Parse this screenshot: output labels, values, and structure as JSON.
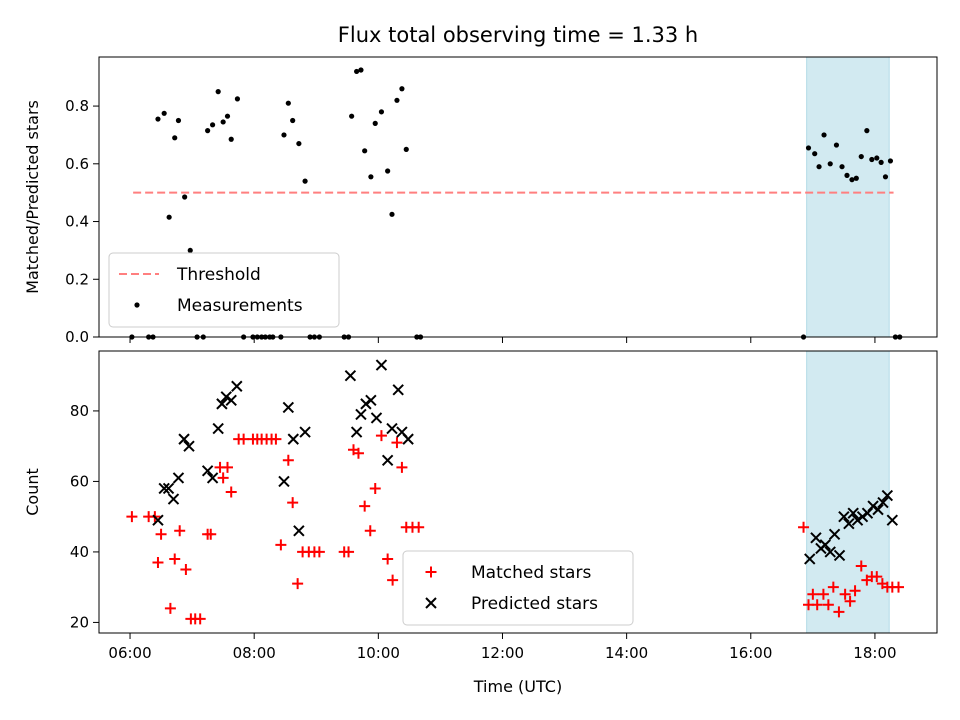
{
  "chart_data": {
    "title": "Flux total observing time = 1.33 h",
    "xlabel": "Time (UTC)",
    "x_unit": "hours UTC",
    "xlim": [
      5.5,
      19.0
    ],
    "x_ticks": [
      6,
      8,
      10,
      12,
      14,
      16,
      18
    ],
    "x_tick_labels": [
      "06:00",
      "08:00",
      "10:00",
      "12:00",
      "14:00",
      "16:00",
      "18:00"
    ],
    "highlight_span": {
      "from": 16.9,
      "to": 18.23,
      "color": "#add8e6"
    },
    "panels": [
      {
        "type": "scatter",
        "ylabel": "Matched/Predicted stars",
        "ylim": [
          0,
          0.97
        ],
        "y_ticks": [
          0.0,
          0.2,
          0.4,
          0.6,
          0.8
        ],
        "y_tick_labels": [
          "0.0",
          "0.2",
          "0.4",
          "0.6",
          "0.8"
        ],
        "legend_position": "lower-left",
        "threshold": {
          "name": "Threshold",
          "value": 0.5,
          "x_range": [
            6.05,
            18.3
          ],
          "color": "#ff7f7f"
        },
        "series": [
          {
            "name": "Measurements",
            "color": "#000000",
            "marker": "dot",
            "points": [
              [
                6.03,
                0
              ],
              [
                6.3,
                0
              ],
              [
                6.37,
                0
              ],
              [
                6.45,
                0.755
              ],
              [
                6.55,
                0.775
              ],
              [
                6.63,
                0.415
              ],
              [
                6.72,
                0.69
              ],
              [
                6.78,
                0.75
              ],
              [
                6.88,
                0.485
              ],
              [
                6.97,
                0.3
              ],
              [
                7.08,
                0
              ],
              [
                7.18,
                0
              ],
              [
                7.25,
                0.715
              ],
              [
                7.33,
                0.735
              ],
              [
                7.42,
                0.85
              ],
              [
                7.5,
                0.745
              ],
              [
                7.57,
                0.765
              ],
              [
                7.63,
                0.685
              ],
              [
                7.73,
                0.825
              ],
              [
                7.83,
                0
              ],
              [
                7.98,
                0
              ],
              [
                8.05,
                0
              ],
              [
                8.12,
                0
              ],
              [
                8.18,
                0
              ],
              [
                8.25,
                0
              ],
              [
                8.3,
                0
              ],
              [
                8.43,
                0
              ],
              [
                8.48,
                0.7
              ],
              [
                8.55,
                0.81
              ],
              [
                8.62,
                0.75
              ],
              [
                8.72,
                0.67
              ],
              [
                8.82,
                0.54
              ],
              [
                8.9,
                0
              ],
              [
                8.97,
                0
              ],
              [
                9.05,
                0
              ],
              [
                9.45,
                0
              ],
              [
                9.52,
                0
              ],
              [
                9.57,
                0.765
              ],
              [
                9.65,
                0.92
              ],
              [
                9.72,
                0.925
              ],
              [
                9.78,
                0.645
              ],
              [
                9.88,
                0.555
              ],
              [
                9.95,
                0.74
              ],
              [
                10.05,
                0.78
              ],
              [
                10.15,
                0.575
              ],
              [
                10.22,
                0.425
              ],
              [
                10.3,
                0.82
              ],
              [
                10.38,
                0.86
              ],
              [
                10.45,
                0.65
              ],
              [
                10.62,
                0
              ],
              [
                10.68,
                0
              ],
              [
                16.85,
                0
              ],
              [
                16.93,
                0.655
              ],
              [
                17.03,
                0.635
              ],
              [
                17.1,
                0.59
              ],
              [
                17.18,
                0.7
              ],
              [
                17.28,
                0.6
              ],
              [
                17.38,
                0.665
              ],
              [
                17.47,
                0.59
              ],
              [
                17.55,
                0.56
              ],
              [
                17.63,
                0.545
              ],
              [
                17.7,
                0.55
              ],
              [
                17.78,
                0.625
              ],
              [
                17.87,
                0.715
              ],
              [
                17.95,
                0.615
              ],
              [
                18.03,
                0.62
              ],
              [
                18.1,
                0.605
              ],
              [
                18.17,
                0.555
              ],
              [
                18.25,
                0.61
              ],
              [
                18.33,
                0
              ],
              [
                18.4,
                0
              ]
            ]
          }
        ]
      },
      {
        "type": "scatter",
        "ylabel": "Count",
        "ylim": [
          17,
          97
        ],
        "y_ticks": [
          20,
          40,
          60,
          80
        ],
        "y_tick_labels": [
          "20",
          "40",
          "60",
          "80"
        ],
        "legend_position": "lower-center",
        "series": [
          {
            "name": "Matched stars",
            "color": "#ff0000",
            "marker": "plus",
            "points": [
              [
                6.03,
                50
              ],
              [
                6.3,
                50
              ],
              [
                6.4,
                50
              ],
              [
                6.45,
                37
              ],
              [
                6.5,
                45
              ],
              [
                6.65,
                24
              ],
              [
                6.72,
                38
              ],
              [
                6.8,
                46
              ],
              [
                6.9,
                35
              ],
              [
                6.98,
                21
              ],
              [
                7.05,
                21
              ],
              [
                7.13,
                21
              ],
              [
                7.25,
                45
              ],
              [
                7.3,
                45
              ],
              [
                7.45,
                64
              ],
              [
                7.5,
                61
              ],
              [
                7.57,
                64
              ],
              [
                7.63,
                57
              ],
              [
                7.75,
                72
              ],
              [
                7.83,
                72
              ],
              [
                7.98,
                72
              ],
              [
                8.05,
                72
              ],
              [
                8.12,
                72
              ],
              [
                8.2,
                72
              ],
              [
                8.28,
                72
              ],
              [
                8.35,
                72
              ],
              [
                8.43,
                42
              ],
              [
                8.55,
                66
              ],
              [
                8.62,
                54
              ],
              [
                8.7,
                31
              ],
              [
                8.78,
                40
              ],
              [
                8.88,
                40
              ],
              [
                8.97,
                40
              ],
              [
                9.05,
                40
              ],
              [
                9.45,
                40
              ],
              [
                9.52,
                40
              ],
              [
                9.6,
                69
              ],
              [
                9.68,
                68
              ],
              [
                9.78,
                53
              ],
              [
                9.87,
                46
              ],
              [
                9.95,
                58
              ],
              [
                10.05,
                73
              ],
              [
                10.15,
                38
              ],
              [
                10.23,
                32
              ],
              [
                10.3,
                71
              ],
              [
                10.38,
                64
              ],
              [
                10.45,
                47
              ],
              [
                10.55,
                47
              ],
              [
                10.65,
                47
              ],
              [
                16.85,
                47
              ],
              [
                16.93,
                25
              ],
              [
                17.0,
                28
              ],
              [
                17.07,
                25
              ],
              [
                17.17,
                28
              ],
              [
                17.25,
                25
              ],
              [
                17.33,
                30
              ],
              [
                17.42,
                23
              ],
              [
                17.52,
                28
              ],
              [
                17.6,
                26
              ],
              [
                17.68,
                29
              ],
              [
                17.78,
                36
              ],
              [
                17.87,
                32
              ],
              [
                17.95,
                33
              ],
              [
                18.03,
                33
              ],
              [
                18.12,
                31
              ],
              [
                18.2,
                30
              ],
              [
                18.28,
                30
              ],
              [
                18.38,
                30
              ]
            ]
          },
          {
            "name": "Predicted stars",
            "color": "#000000",
            "marker": "cross",
            "points": [
              [
                6.45,
                49
              ],
              [
                6.55,
                58
              ],
              [
                6.62,
                58
              ],
              [
                6.7,
                55
              ],
              [
                6.78,
                61
              ],
              [
                6.87,
                72
              ],
              [
                6.95,
                70
              ],
              [
                7.25,
                63
              ],
              [
                7.33,
                61
              ],
              [
                7.42,
                75
              ],
              [
                7.48,
                82
              ],
              [
                7.55,
                84
              ],
              [
                7.63,
                83
              ],
              [
                7.72,
                87
              ],
              [
                8.48,
                60
              ],
              [
                8.55,
                81
              ],
              [
                8.63,
                72
              ],
              [
                8.72,
                46
              ],
              [
                8.82,
                74
              ],
              [
                9.55,
                90
              ],
              [
                9.65,
                74
              ],
              [
                9.72,
                79
              ],
              [
                9.8,
                82
              ],
              [
                9.88,
                83
              ],
              [
                9.97,
                78
              ],
              [
                10.05,
                93
              ],
              [
                10.15,
                66
              ],
              [
                10.22,
                75
              ],
              [
                10.32,
                86
              ],
              [
                10.38,
                74
              ],
              [
                10.48,
                72
              ],
              [
                16.95,
                38
              ],
              [
                17.05,
                44
              ],
              [
                17.13,
                41
              ],
              [
                17.2,
                42
              ],
              [
                17.28,
                40
              ],
              [
                17.35,
                45
              ],
              [
                17.43,
                39
              ],
              [
                17.5,
                50
              ],
              [
                17.58,
                48
              ],
              [
                17.65,
                51
              ],
              [
                17.72,
                49
              ],
              [
                17.8,
                50
              ],
              [
                17.88,
                51
              ],
              [
                17.97,
                53
              ],
              [
                18.05,
                52
              ],
              [
                18.13,
                54
              ],
              [
                18.2,
                56
              ],
              [
                18.28,
                49
              ]
            ]
          }
        ]
      }
    ]
  }
}
